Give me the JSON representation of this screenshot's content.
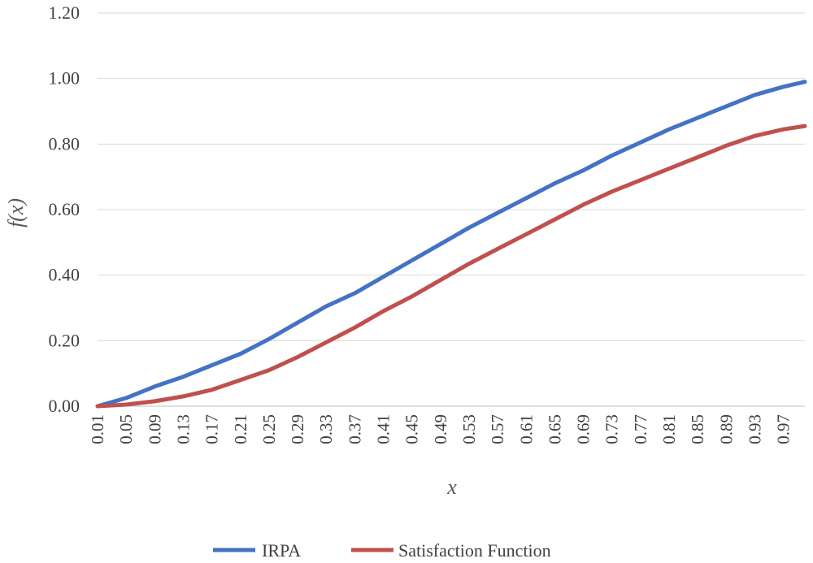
{
  "chart_data": {
    "type": "line",
    "title": "",
    "xlabel": "x",
    "ylabel": "f(x)",
    "ylim": [
      0,
      1.2
    ],
    "yticks": [
      "0.00",
      "0.20",
      "0.40",
      "0.60",
      "0.80",
      "1.00",
      "1.20"
    ],
    "x_tick_labels": [
      "0.01",
      "0.05",
      "0.09",
      "0.13",
      "0.17",
      "0.21",
      "0.25",
      "0.29",
      "0.33",
      "0.37",
      "0.41",
      "0.45",
      "0.49",
      "0.53",
      "0.57",
      "0.61",
      "0.65",
      "0.69",
      "0.73",
      "0.77",
      "0.81",
      "0.85",
      "0.89",
      "0.93",
      "0.97"
    ],
    "x": [
      0.01,
      0.05,
      0.09,
      0.13,
      0.17,
      0.21,
      0.25,
      0.29,
      0.33,
      0.37,
      0.41,
      0.45,
      0.49,
      0.53,
      0.57,
      0.61,
      0.65,
      0.69,
      0.73,
      0.77,
      0.81,
      0.85,
      0.89,
      0.93,
      0.97,
      1.0
    ],
    "grid": true,
    "legend_position": "bottom",
    "series": [
      {
        "name": "IRPA",
        "color": "#4472C4",
        "values": [
          0.0,
          0.025,
          0.06,
          0.09,
          0.125,
          0.16,
          0.205,
          0.255,
          0.305,
          0.345,
          0.395,
          0.445,
          0.495,
          0.545,
          0.59,
          0.635,
          0.68,
          0.72,
          0.765,
          0.805,
          0.845,
          0.88,
          0.915,
          0.95,
          0.975,
          0.99
        ]
      },
      {
        "name": "Satisfaction Function",
        "color": "#C0504D",
        "values": [
          0.0,
          0.005,
          0.015,
          0.03,
          0.05,
          0.08,
          0.11,
          0.15,
          0.195,
          0.24,
          0.29,
          0.335,
          0.385,
          0.435,
          0.48,
          0.525,
          0.57,
          0.615,
          0.655,
          0.69,
          0.725,
          0.76,
          0.795,
          0.825,
          0.845,
          0.855
        ]
      }
    ]
  }
}
